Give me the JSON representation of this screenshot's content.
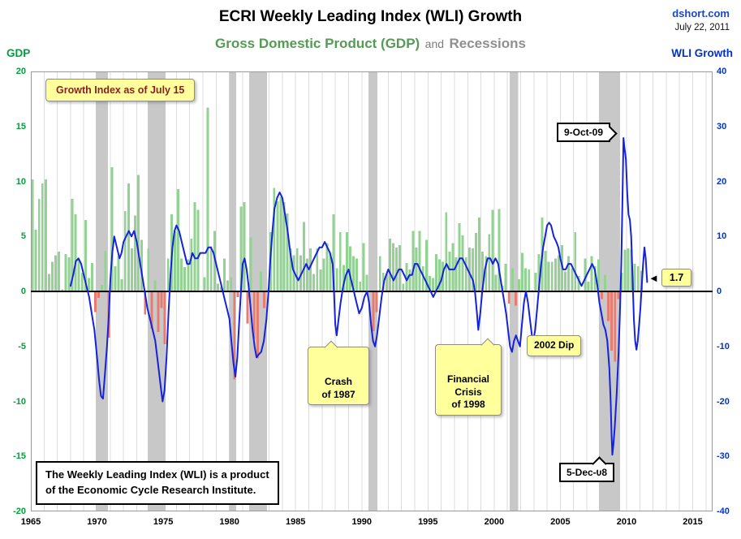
{
  "header": {
    "title": "ECRI Weekly Leading Index (WLI) Growth",
    "source": "dshort.com",
    "date": "July 22, 2011",
    "subtitle_gdp": "Gross Domestic Product (GDP)",
    "subtitle_and": "and",
    "subtitle_recessions": "Recessions",
    "left_axis_title": "GDP",
    "right_axis_title": "WLI Growth"
  },
  "footnote": {
    "text": "The Weekly Leading Index (WLI) is a product\nof the Economic Cycle Research Institute."
  },
  "colors": {
    "gdp_positive": "#92d292",
    "gdp_negative": "#e87b70",
    "wli_line": "#1522dd",
    "recession_band": "#c8c8c8",
    "grid": "#dcdcdc",
    "zero_line": "#000000",
    "left_axis_text": "#00a03c",
    "right_axis_text": "#0033cc",
    "note_yellow": "#ffff9c",
    "source_blue": "#1a47c8",
    "subtitle_green": "#559a55",
    "subtitle_gray": "#8f8f8f"
  },
  "chart_data": {
    "type": "line+bar",
    "title": "ECRI Weekly Leading Index (WLI) Growth",
    "subtitle": "Gross Domestic Product (GDP) and Recessions",
    "x_domain": [
      1965,
      2016.5
    ],
    "x_ticks": [
      1965,
      1970,
      1975,
      1980,
      1985,
      1990,
      1995,
      2000,
      2005,
      2010,
      2015
    ],
    "grid": "vertical-yearly",
    "left_axis": {
      "title": "GDP",
      "min": -20,
      "max": 20,
      "ticks": [
        20,
        15,
        10,
        5,
        0,
        -5,
        -10,
        -15,
        -20
      ]
    },
    "right_axis": {
      "title": "WLI Growth",
      "min": -40,
      "max": 40,
      "ticks": [
        40,
        30,
        20,
        10,
        0,
        -10,
        -20,
        -30,
        -40
      ]
    },
    "recessions": [
      [
        1969.92,
        1970.83
      ],
      [
        1973.83,
        1975.17
      ],
      [
        1980.0,
        1980.5
      ],
      [
        1981.5,
        1982.83
      ],
      [
        1990.5,
        1991.17
      ],
      [
        2001.17,
        2001.83
      ],
      [
        2007.92,
        2009.5
      ]
    ],
    "gdp_quarterly": {
      "name": "Gross Domestic Product (GDP)",
      "axis": "left",
      "start": 1965,
      "step": 0.25,
      "values": [
        10.2,
        5.6,
        8.4,
        9.8,
        10.2,
        1.6,
        2.7,
        3.3,
        3.6,
        0.2,
        3.4,
        3.1,
        8.4,
        7.0,
        2.9,
        1.7,
        6.5,
        1.2,
        2.6,
        -1.9,
        -0.6,
        0.6,
        3.7,
        -4.2,
        11.3,
        2.3,
        3.2,
        1.1,
        7.3,
        9.8,
        3.9,
        6.9,
        10.6,
        4.7,
        -2.1,
        3.9,
        -3.4,
        1.0,
        -3.7,
        -1.5,
        -4.8,
        3.0,
        7.0,
        5.5,
        9.3,
        3.0,
        2.2,
        2.9,
        4.8,
        8.1,
        7.4,
        0.0,
        1.3,
        16.7,
        4.1,
        5.5,
        0.7,
        0.4,
        3.0,
        1.0,
        1.3,
        -8.0,
        -0.5,
        7.7,
        8.1,
        -2.9,
        4.9,
        -4.3,
        -6.1,
        1.8,
        -1.5,
        0.2,
        5.4,
        9.4,
        8.2,
        8.6,
        8.1,
        7.1,
        3.9,
        3.3,
        3.9,
        3.3,
        6.3,
        3.0,
        3.9,
        1.6,
        3.9,
        2.0,
        3.0,
        4.4,
        3.5,
        7.0,
        2.1,
        5.4,
        2.4,
        5.4,
        4.1,
        3.2,
        3.0,
        0.9,
        4.4,
        1.5,
        0.0,
        -3.6,
        -1.9,
        3.2,
        1.7,
        1.6,
        4.8,
        4.4,
        4.0,
        4.2,
        0.7,
        2.6,
        2.0,
        5.5,
        4.0,
        5.5,
        2.3,
        4.7,
        1.4,
        1.2,
        3.4,
        2.9,
        2.7,
        7.2,
        3.6,
        4.4,
        3.1,
        6.2,
        5.1,
        3.1,
        4.0,
        3.9,
        5.3,
        6.7,
        3.6,
        3.2,
        5.2,
        7.4,
        1.5,
        7.5,
        0.5,
        2.5,
        -1.1,
        2.1,
        -1.3,
        1.1,
        3.5,
        2.1,
        2.0,
        0.1,
        1.7,
        3.4,
        6.7,
        3.7,
        2.7,
        2.7,
        3.0,
        3.3,
        4.2,
        1.8,
        3.2,
        2.1,
        5.4,
        1.4,
        0.1,
        3.0,
        0.9,
        3.2,
        2.3,
        2.9,
        -0.7,
        1.5,
        -2.7,
        -5.4,
        -6.4,
        -0.7,
        1.7,
        3.8,
        3.9,
        3.8,
        2.5,
        2.3,
        1.9
      ]
    },
    "wli_growth": {
      "name": "WLI Growth",
      "axis": "right",
      "latest_value": 1.7,
      "points": [
        [
          1968.0,
          1
        ],
        [
          1968.2,
          3
        ],
        [
          1968.4,
          5.5
        ],
        [
          1968.6,
          6
        ],
        [
          1968.8,
          5
        ],
        [
          1969.0,
          3
        ],
        [
          1969.2,
          1
        ],
        [
          1969.4,
          -1
        ],
        [
          1969.6,
          -4
        ],
        [
          1969.8,
          -7
        ],
        [
          1970.0,
          -12
        ],
        [
          1970.15,
          -16
        ],
        [
          1970.3,
          -19
        ],
        [
          1970.45,
          -19.5
        ],
        [
          1970.6,
          -15
        ],
        [
          1970.75,
          -10
        ],
        [
          1970.9,
          -4
        ],
        [
          1971.0,
          2
        ],
        [
          1971.15,
          7
        ],
        [
          1971.3,
          10
        ],
        [
          1971.5,
          8
        ],
        [
          1971.7,
          6
        ],
        [
          1971.85,
          7
        ],
        [
          1972.0,
          9
        ],
        [
          1972.2,
          10
        ],
        [
          1972.4,
          11
        ],
        [
          1972.6,
          10
        ],
        [
          1972.8,
          11
        ],
        [
          1973.0,
          9
        ],
        [
          1973.2,
          6
        ],
        [
          1973.4,
          3
        ],
        [
          1973.6,
          0
        ],
        [
          1973.8,
          -3
        ],
        [
          1974.0,
          -5
        ],
        [
          1974.2,
          -7
        ],
        [
          1974.4,
          -9
        ],
        [
          1974.6,
          -13
        ],
        [
          1974.8,
          -17
        ],
        [
          1974.95,
          -20
        ],
        [
          1975.1,
          -18
        ],
        [
          1975.25,
          -12
        ],
        [
          1975.4,
          -4
        ],
        [
          1975.55,
          3
        ],
        [
          1975.7,
          8
        ],
        [
          1975.85,
          11
        ],
        [
          1976.0,
          12
        ],
        [
          1976.2,
          11
        ],
        [
          1976.4,
          9
        ],
        [
          1976.6,
          7
        ],
        [
          1976.8,
          5
        ],
        [
          1977.0,
          5
        ],
        [
          1977.2,
          7
        ],
        [
          1977.4,
          6
        ],
        [
          1977.6,
          6
        ],
        [
          1977.8,
          7
        ],
        [
          1978.0,
          7
        ],
        [
          1978.2,
          7
        ],
        [
          1978.4,
          8
        ],
        [
          1978.6,
          8
        ],
        [
          1978.8,
          7
        ],
        [
          1979.0,
          5
        ],
        [
          1979.2,
          3
        ],
        [
          1979.4,
          1
        ],
        [
          1979.6,
          -1
        ],
        [
          1979.8,
          -3
        ],
        [
          1980.0,
          -5
        ],
        [
          1980.15,
          -9
        ],
        [
          1980.3,
          -13
        ],
        [
          1980.45,
          -15.5
        ],
        [
          1980.6,
          -12
        ],
        [
          1980.75,
          -5
        ],
        [
          1980.9,
          1
        ],
        [
          1981.0,
          5
        ],
        [
          1981.15,
          6
        ],
        [
          1981.3,
          4
        ],
        [
          1981.45,
          1
        ],
        [
          1981.6,
          -3
        ],
        [
          1981.75,
          -7
        ],
        [
          1981.9,
          -10
        ],
        [
          1982.05,
          -12
        ],
        [
          1982.2,
          -11.5
        ],
        [
          1982.4,
          -11
        ],
        [
          1982.6,
          -9
        ],
        [
          1982.8,
          -5
        ],
        [
          1982.95,
          0
        ],
        [
          1983.1,
          6
        ],
        [
          1983.25,
          11
        ],
        [
          1983.4,
          15
        ],
        [
          1983.6,
          17
        ],
        [
          1983.8,
          18
        ],
        [
          1984.0,
          17
        ],
        [
          1984.2,
          14
        ],
        [
          1984.4,
          11
        ],
        [
          1984.6,
          7
        ],
        [
          1984.8,
          4
        ],
        [
          1985.0,
          3
        ],
        [
          1985.2,
          2
        ],
        [
          1985.4,
          3
        ],
        [
          1985.6,
          4
        ],
        [
          1985.8,
          5
        ],
        [
          1986.0,
          4
        ],
        [
          1986.2,
          5
        ],
        [
          1986.4,
          6
        ],
        [
          1986.6,
          7
        ],
        [
          1986.8,
          8
        ],
        [
          1987.0,
          8
        ],
        [
          1987.2,
          9
        ],
        [
          1987.4,
          8
        ],
        [
          1987.6,
          7
        ],
        [
          1987.8,
          5
        ],
        [
          1987.9,
          0
        ],
        [
          1988.0,
          -6
        ],
        [
          1988.1,
          -8
        ],
        [
          1988.25,
          -5
        ],
        [
          1988.4,
          -2
        ],
        [
          1988.6,
          1
        ],
        [
          1988.8,
          3
        ],
        [
          1989.0,
          4
        ],
        [
          1989.2,
          2
        ],
        [
          1989.4,
          0
        ],
        [
          1989.6,
          -2
        ],
        [
          1989.8,
          -4
        ],
        [
          1990.0,
          -3
        ],
        [
          1990.2,
          -1
        ],
        [
          1990.4,
          0
        ],
        [
          1990.55,
          -2
        ],
        [
          1990.7,
          -6
        ],
        [
          1990.85,
          -9
        ],
        [
          1991.0,
          -10
        ],
        [
          1991.15,
          -8
        ],
        [
          1991.3,
          -5
        ],
        [
          1991.5,
          -1
        ],
        [
          1991.7,
          2
        ],
        [
          1991.85,
          3
        ],
        [
          1992.0,
          4
        ],
        [
          1992.2,
          3
        ],
        [
          1992.4,
          2
        ],
        [
          1992.6,
          3
        ],
        [
          1992.8,
          4
        ],
        [
          1993.0,
          4
        ],
        [
          1993.2,
          3
        ],
        [
          1993.4,
          2
        ],
        [
          1993.6,
          3
        ],
        [
          1993.8,
          3
        ],
        [
          1994.0,
          5
        ],
        [
          1994.2,
          5
        ],
        [
          1994.4,
          4
        ],
        [
          1994.6,
          3
        ],
        [
          1994.8,
          2
        ],
        [
          1995.0,
          1
        ],
        [
          1995.2,
          0
        ],
        [
          1995.4,
          -1
        ],
        [
          1995.6,
          0
        ],
        [
          1995.8,
          1
        ],
        [
          1996.0,
          2
        ],
        [
          1996.2,
          4
        ],
        [
          1996.4,
          5
        ],
        [
          1996.6,
          4
        ],
        [
          1996.8,
          4
        ],
        [
          1997.0,
          4
        ],
        [
          1997.2,
          5
        ],
        [
          1997.4,
          6
        ],
        [
          1997.6,
          6
        ],
        [
          1997.8,
          5
        ],
        [
          1998.0,
          4
        ],
        [
          1998.2,
          3
        ],
        [
          1998.4,
          2
        ],
        [
          1998.55,
          0
        ],
        [
          1998.7,
          -4
        ],
        [
          1998.8,
          -7
        ],
        [
          1998.95,
          -4
        ],
        [
          1999.1,
          0
        ],
        [
          1999.3,
          4
        ],
        [
          1999.5,
          6
        ],
        [
          1999.7,
          6
        ],
        [
          1999.9,
          5
        ],
        [
          2000.1,
          6
        ],
        [
          2000.3,
          5
        ],
        [
          2000.5,
          2
        ],
        [
          2000.7,
          -1
        ],
        [
          2000.9,
          -4
        ],
        [
          2001.05,
          -7
        ],
        [
          2001.2,
          -10
        ],
        [
          2001.35,
          -11
        ],
        [
          2001.5,
          -9
        ],
        [
          2001.65,
          -8
        ],
        [
          2001.8,
          -9
        ],
        [
          2001.95,
          -10
        ],
        [
          2002.1,
          -6
        ],
        [
          2002.25,
          -2
        ],
        [
          2002.4,
          0
        ],
        [
          2002.55,
          -2
        ],
        [
          2002.7,
          -5
        ],
        [
          2002.85,
          -8
        ],
        [
          2002.95,
          -9
        ],
        [
          2003.1,
          -7
        ],
        [
          2003.25,
          -3
        ],
        [
          2003.4,
          1
        ],
        [
          2003.55,
          5
        ],
        [
          2003.7,
          8
        ],
        [
          2003.85,
          10
        ],
        [
          2004.0,
          12
        ],
        [
          2004.15,
          12.5
        ],
        [
          2004.3,
          12
        ],
        [
          2004.5,
          10
        ],
        [
          2004.7,
          9
        ],
        [
          2004.85,
          8
        ],
        [
          2005.0,
          6
        ],
        [
          2005.2,
          4
        ],
        [
          2005.4,
          4
        ],
        [
          2005.6,
          5
        ],
        [
          2005.8,
          5
        ],
        [
          2006.0,
          4
        ],
        [
          2006.2,
          3
        ],
        [
          2006.4,
          2
        ],
        [
          2006.6,
          1
        ],
        [
          2006.8,
          2
        ],
        [
          2007.0,
          3
        ],
        [
          2007.2,
          4
        ],
        [
          2007.4,
          5
        ],
        [
          2007.6,
          4
        ],
        [
          2007.8,
          1
        ],
        [
          2007.95,
          -2
        ],
        [
          2008.1,
          -4
        ],
        [
          2008.25,
          -6
        ],
        [
          2008.4,
          -7
        ],
        [
          2008.55,
          -9
        ],
        [
          2008.7,
          -14
        ],
        [
          2008.8,
          -20
        ],
        [
          2008.87,
          -26
        ],
        [
          2008.93,
          -29.7
        ],
        [
          2009.0,
          -28
        ],
        [
          2009.1,
          -25
        ],
        [
          2009.25,
          -19
        ],
        [
          2009.4,
          -11
        ],
        [
          2009.5,
          -4
        ],
        [
          2009.6,
          5
        ],
        [
          2009.7,
          18
        ],
        [
          2009.77,
          27.9
        ],
        [
          2009.85,
          26
        ],
        [
          2009.95,
          24
        ],
        [
          2010.05,
          18
        ],
        [
          2010.15,
          14
        ],
        [
          2010.25,
          13
        ],
        [
          2010.35,
          10
        ],
        [
          2010.45,
          3
        ],
        [
          2010.55,
          -5
        ],
        [
          2010.65,
          -9
        ],
        [
          2010.75,
          -10.6
        ],
        [
          2010.85,
          -9
        ],
        [
          2010.95,
          -6
        ],
        [
          2011.05,
          -3
        ],
        [
          2011.15,
          1
        ],
        [
          2011.25,
          5
        ],
        [
          2011.35,
          8
        ],
        [
          2011.45,
          6
        ],
        [
          2011.52,
          3
        ],
        [
          2011.56,
          1.7
        ]
      ]
    },
    "annotations": [
      {
        "id": "growth_index",
        "text": "Growth Index as of July 15"
      },
      {
        "id": "crash_1987",
        "text": "Crash\nof 1987"
      },
      {
        "id": "financial_crisis_1998",
        "text": "Financial\nCrisis\nof 1998"
      },
      {
        "id": "dip_2002",
        "text": "2002 Dip"
      },
      {
        "id": "peak_date",
        "text": "9-Oct-09"
      },
      {
        "id": "trough_date",
        "text": "5-Dec-08"
      },
      {
        "id": "latest_value",
        "text": "1.7"
      }
    ]
  }
}
